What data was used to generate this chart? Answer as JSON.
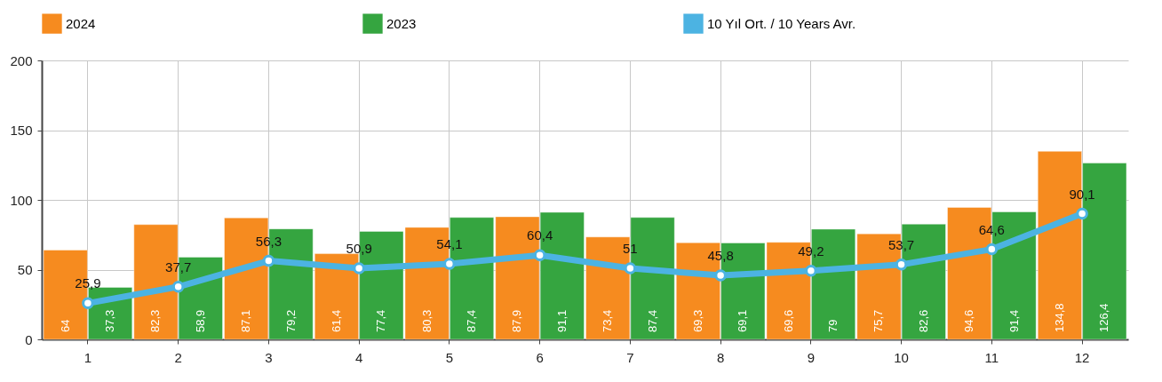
{
  "chart_data": {
    "type": "bar",
    "categories": [
      "1",
      "2",
      "3",
      "4",
      "5",
      "6",
      "7",
      "8",
      "9",
      "10",
      "11",
      "12"
    ],
    "series": [
      {
        "name": "2024",
        "color": "#f68b1f",
        "values": [
          64,
          82.3,
          87.1,
          61.4,
          80.3,
          87.9,
          73.4,
          69.3,
          69.6,
          75.7,
          94.6,
          134.8
        ],
        "value_labels": [
          "64",
          "82,3",
          "87,1",
          "61,4",
          "80,3",
          "87,9",
          "73,4",
          "69,3",
          "69,6",
          "75,7",
          "94,6",
          "134,8"
        ]
      },
      {
        "name": "2023",
        "color": "#35a540",
        "values": [
          37.3,
          58.9,
          79.2,
          77.4,
          87.4,
          91.1,
          87.4,
          69.1,
          79,
          82.6,
          91.4,
          126.4
        ],
        "value_labels": [
          "37,3",
          "58,9",
          "79,2",
          "77,4",
          "87,4",
          "91,1",
          "87,4",
          "69,1",
          "79",
          "82,6",
          "91,4",
          "126,4"
        ]
      },
      {
        "name": "10 Yıl Ort. / 10 Years Avr.",
        "type": "line",
        "color": "#4cb3e2",
        "values": [
          25.9,
          37.7,
          56.3,
          50.9,
          54.1,
          60.4,
          51,
          45.8,
          49.2,
          53.7,
          64.6,
          90.1
        ],
        "value_labels": [
          "25,9",
          "37,7",
          "56,3",
          "50,9",
          "54,1",
          "60,4",
          "51",
          "45,8",
          "49,2",
          "53,7",
          "64,6",
          "90,1"
        ]
      }
    ],
    "ylim": [
      0,
      200
    ],
    "yticks": [
      0,
      50,
      100,
      150,
      200
    ],
    "grid": true,
    "legend": "top",
    "marker": "circle"
  }
}
